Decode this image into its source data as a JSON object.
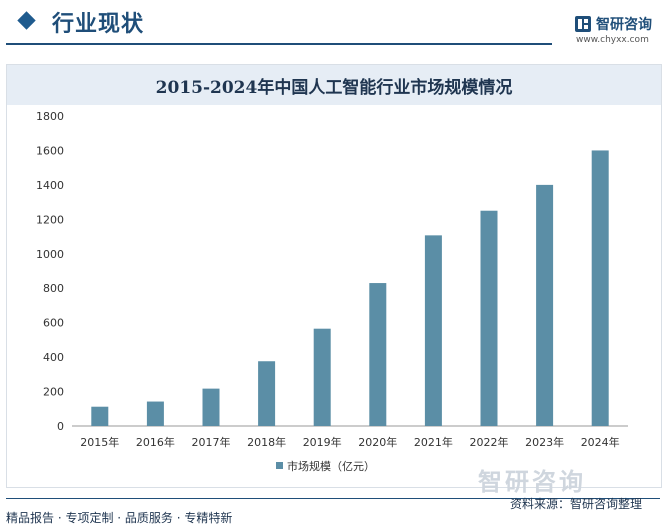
{
  "header": {
    "section_title": "行业现状"
  },
  "logo": {
    "name": "智研咨询",
    "url": "www.chyxx.com"
  },
  "chart_data": {
    "type": "bar",
    "title": "2015-2024年中国人工智能行业市场规模情况",
    "categories": [
      "2015年",
      "2016年",
      "2017年",
      "2018年",
      "2019年",
      "2020年",
      "2021年",
      "2022年",
      "2023年",
      "2024年"
    ],
    "series": [
      {
        "name": "市场规模（亿元）",
        "values": [
          112,
          142,
          217,
          376,
          565,
          830,
          1107,
          1250,
          1400,
          1600
        ]
      }
    ],
    "ylim": [
      0,
      1800
    ],
    "yticks": [
      0,
      200,
      400,
      600,
      800,
      1000,
      1200,
      1400,
      1600,
      1800
    ],
    "grid": false,
    "legend": "bottom",
    "bar_color": "#5b8ea6"
  },
  "footer": {
    "left": "精品报告 · 专项定制 · 品质服务 · 专精特新",
    "source": "资料来源：智研咨询整理",
    "watermark": "智研咨询"
  }
}
